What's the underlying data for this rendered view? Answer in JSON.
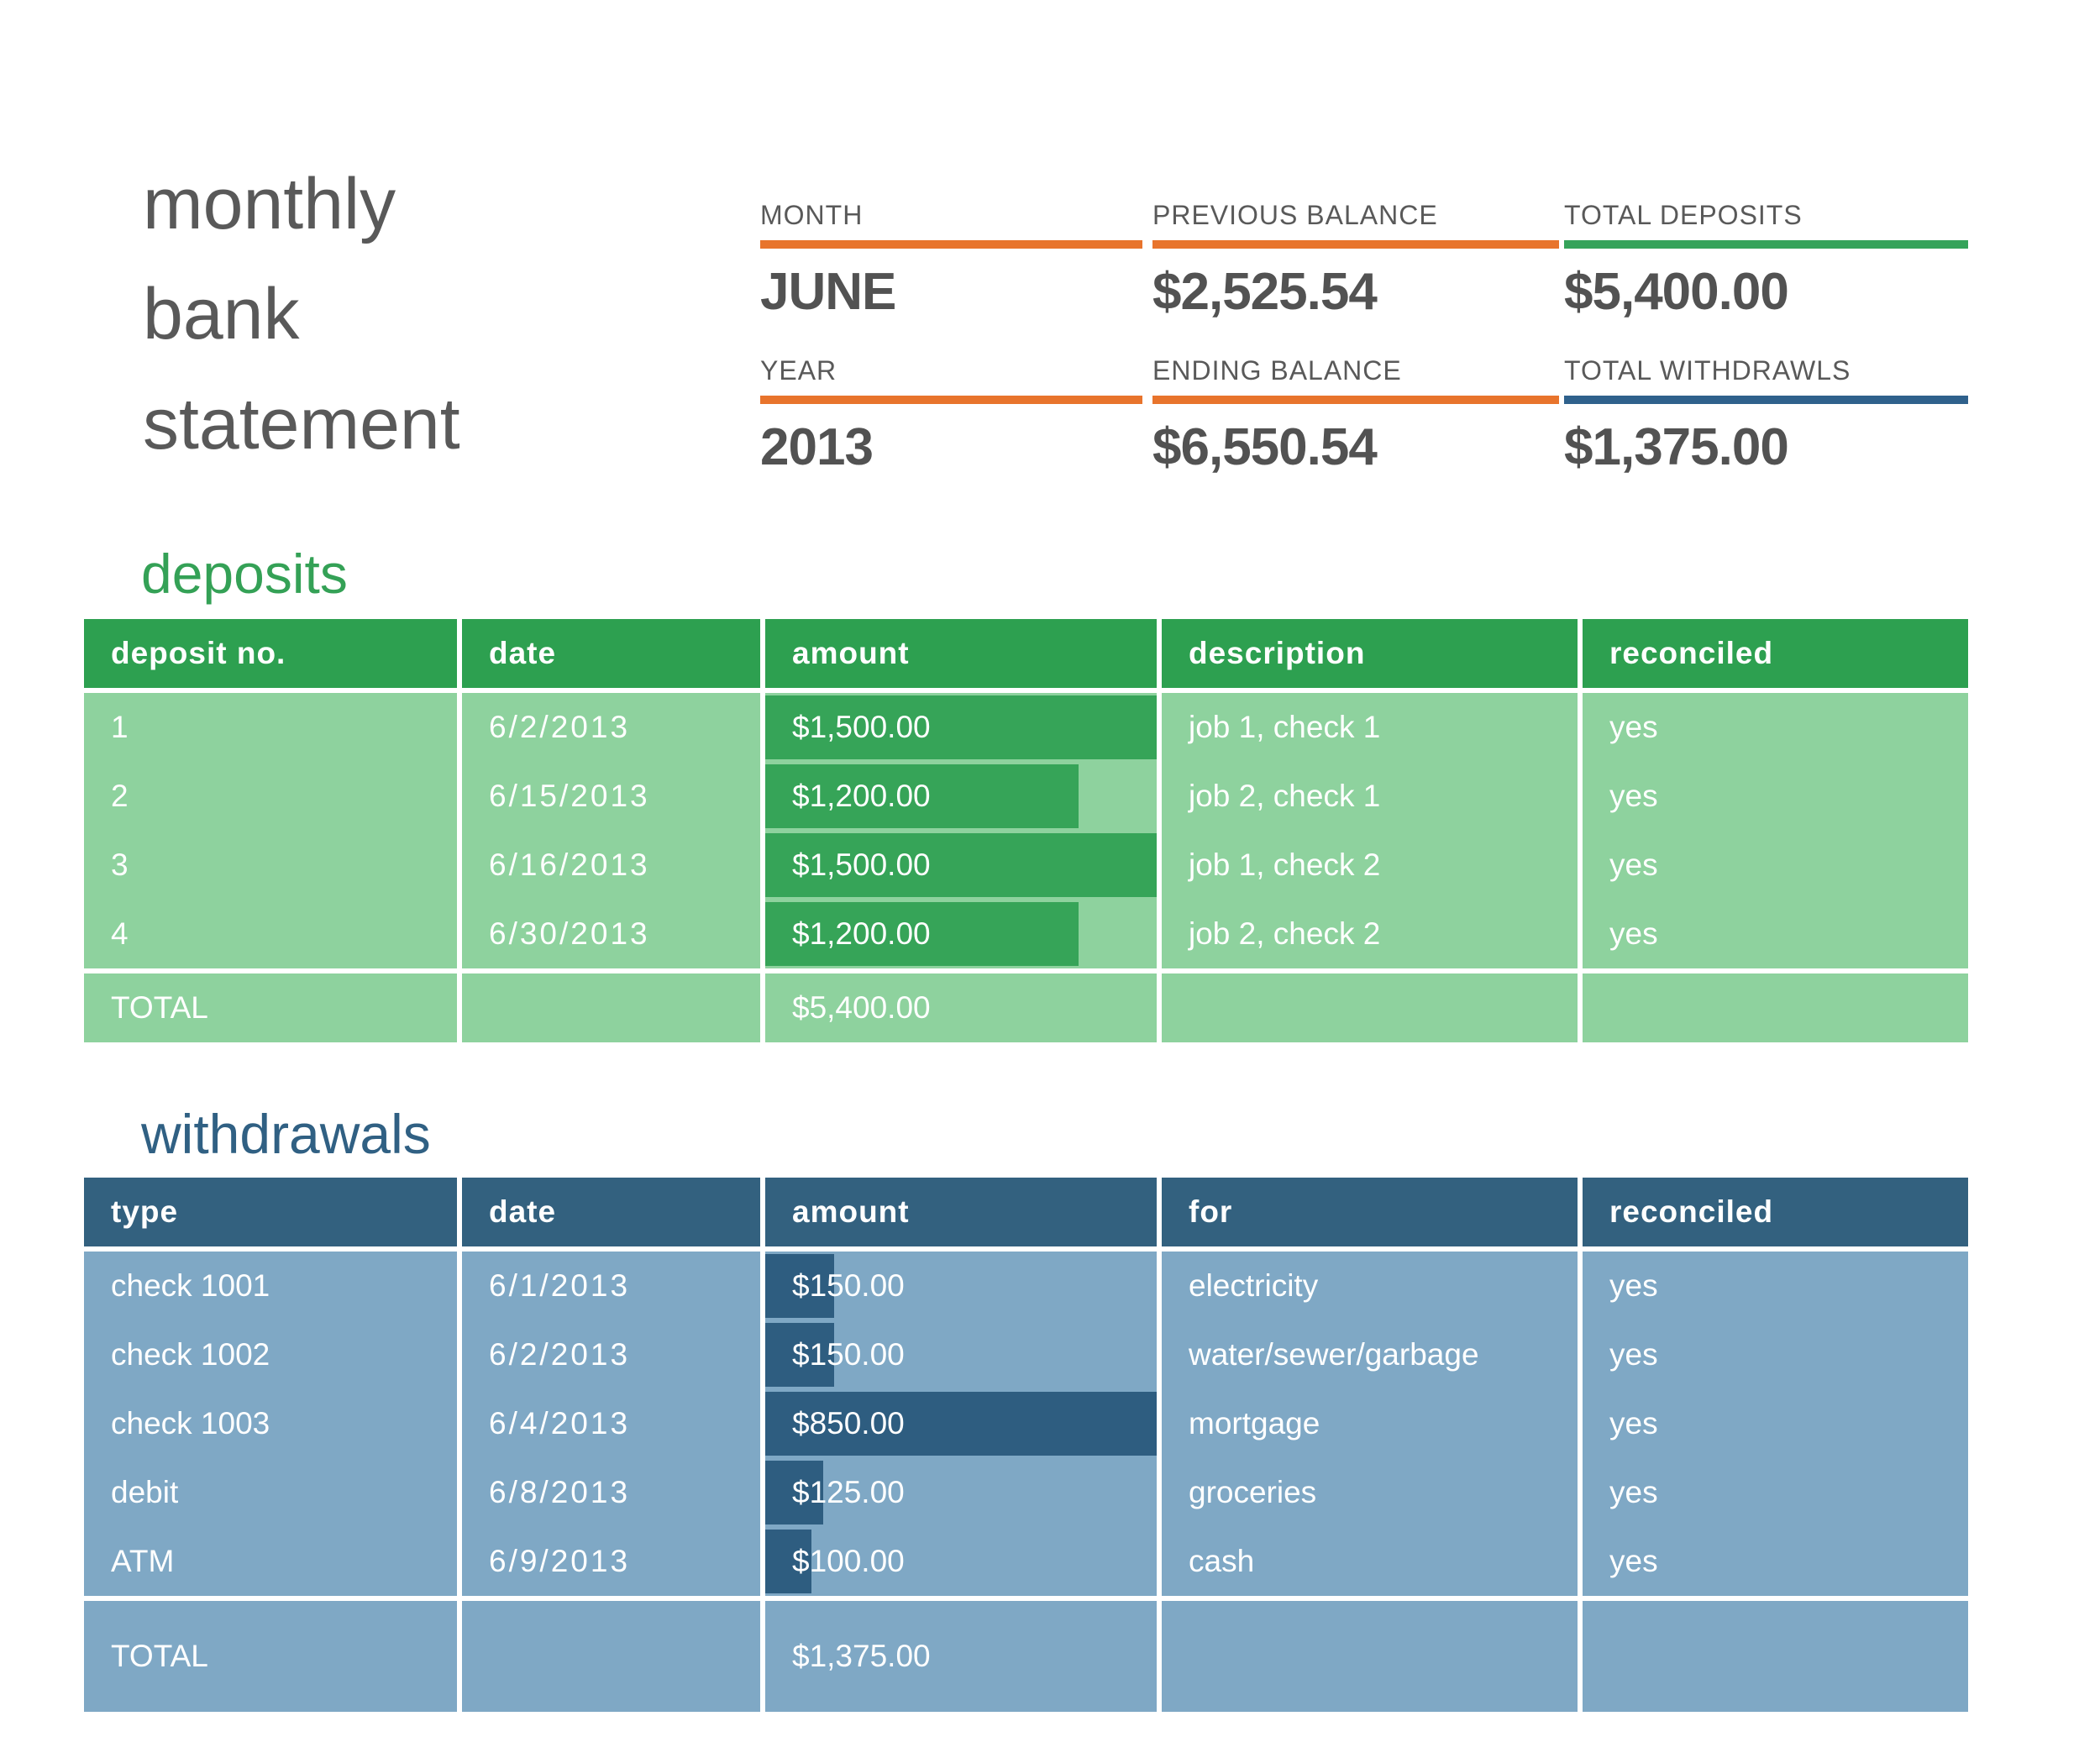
{
  "title": {
    "line1": "monthly",
    "line2": "bank",
    "line3": "statement",
    "color": "#595959"
  },
  "summary": {
    "month": {
      "label": "MONTH",
      "value": "JUNE",
      "underline": "#e8742c"
    },
    "previous_balance": {
      "label": "PREVIOUS BALANCE",
      "value": "$2,525.54",
      "underline": "#e8742c"
    },
    "total_deposits": {
      "label": "TOTAL DEPOSITS",
      "value": "$5,400.00",
      "underline": "#35a35a"
    },
    "year": {
      "label": "YEAR",
      "value": "2013",
      "underline": "#e8742c"
    },
    "ending_balance": {
      "label": "ENDING BALANCE",
      "value": "$6,550.54",
      "underline": "#e8742c"
    },
    "total_withdrawals": {
      "label": "TOTAL WITHDRAWLS",
      "value": "$1,375.00",
      "underline": "#2f618c"
    }
  },
  "deposits": {
    "heading": "deposits",
    "columns": [
      "deposit no.",
      "date",
      "amount",
      "description",
      "reconciled"
    ],
    "rows": [
      {
        "no": "1",
        "date": "6/2/2013",
        "amount": "$1,500.00",
        "bar": "100%",
        "description": "job 1, check 1",
        "reconciled": "yes"
      },
      {
        "no": "2",
        "date": "6/15/2013",
        "amount": "$1,200.00",
        "bar": "80%",
        "description": "job 2, check 1",
        "reconciled": "yes"
      },
      {
        "no": "3",
        "date": "6/16/2013",
        "amount": "$1,500.00",
        "bar": "100%",
        "description": "job 1, check 2",
        "reconciled": "yes"
      },
      {
        "no": "4",
        "date": "6/30/2013",
        "amount": "$1,200.00",
        "bar": "80%",
        "description": "job 2, check 2",
        "reconciled": "yes"
      }
    ],
    "total": {
      "label": "TOTAL",
      "amount": "$5,400.00"
    },
    "colors": {
      "header": "#2da050",
      "body": "#8ed29e",
      "bar": "#36a458",
      "heading_text": "#34a156"
    }
  },
  "withdrawals": {
    "heading": "withdrawals",
    "columns": [
      "type",
      "date",
      "amount",
      "for",
      "reconciled"
    ],
    "rows": [
      {
        "type": "check 1001",
        "date": "6/1/2013",
        "amount": "$150.00",
        "bar": "17.6%",
        "for": "electricity",
        "reconciled": "yes"
      },
      {
        "type": "check 1002",
        "date": "6/2/2013",
        "amount": "$150.00",
        "bar": "17.6%",
        "for": "water/sewer/garbage",
        "reconciled": "yes"
      },
      {
        "type": "check 1003",
        "date": "6/4/2013",
        "amount": "$850.00",
        "bar": "100%",
        "for": "mortgage",
        "reconciled": "yes"
      },
      {
        "type": "debit",
        "date": "6/8/2013",
        "amount": "$125.00",
        "bar": "14.7%",
        "for": "groceries",
        "reconciled": "yes"
      },
      {
        "type": "ATM",
        "date": "6/9/2013",
        "amount": "$100.00",
        "bar": "11.8%",
        "for": "cash",
        "reconciled": "yes"
      }
    ],
    "total": {
      "label": "TOTAL",
      "amount": "$1,375.00"
    },
    "colors": {
      "header": "#33617f",
      "body": "#7fa8c5",
      "bar": "#2e5d80",
      "heading_text": "#306083"
    }
  }
}
